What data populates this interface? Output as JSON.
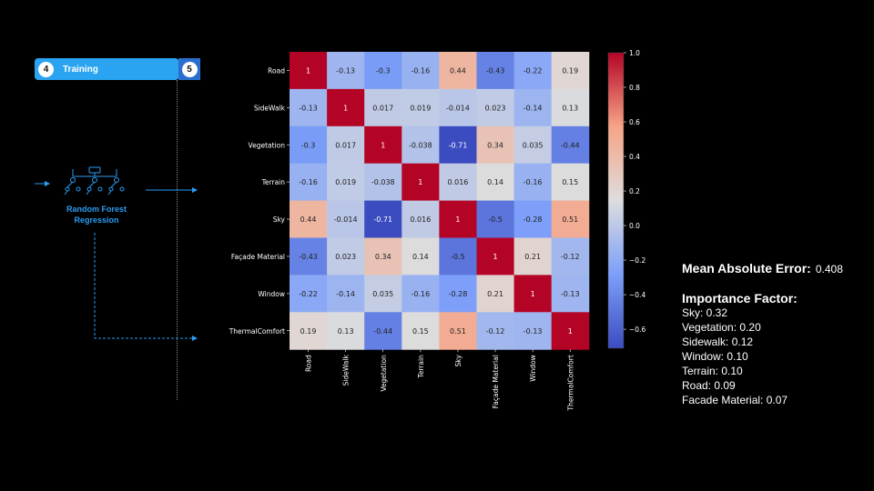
{
  "pipeline": {
    "step_current_number": "4",
    "step_current_label": "Training",
    "step_next_number": "5",
    "model_label_line1": "Random Forest",
    "model_label_line2": "Regression",
    "icon": "decision-tree-icon"
  },
  "chart_data": {
    "type": "heatmap",
    "title": "",
    "xlabel": "",
    "ylabel": "",
    "categories": [
      "Road",
      "SideWalk",
      "Vegetation",
      "Terrain",
      "Sky",
      "Façade Material",
      "Window",
      "ThermalComfort"
    ],
    "matrix": [
      [
        1,
        -0.13,
        -0.3,
        -0.16,
        0.44,
        -0.43,
        -0.22,
        0.19
      ],
      [
        -0.13,
        1,
        0.017,
        0.019,
        -0.014,
        0.023,
        -0.14,
        0.13
      ],
      [
        -0.3,
        0.017,
        1,
        -0.038,
        -0.71,
        0.34,
        0.035,
        -0.44
      ],
      [
        -0.16,
        0.019,
        -0.038,
        1,
        0.016,
        0.14,
        -0.16,
        0.15
      ],
      [
        0.44,
        -0.014,
        -0.71,
        0.016,
        1,
        -0.5,
        -0.28,
        0.51
      ],
      [
        -0.43,
        0.023,
        0.34,
        0.14,
        -0.5,
        1,
        0.21,
        -0.12
      ],
      [
        -0.22,
        -0.14,
        0.035,
        -0.16,
        -0.28,
        0.21,
        1,
        -0.13
      ],
      [
        0.19,
        0.13,
        -0.44,
        0.15,
        0.51,
        -0.12,
        -0.13,
        1
      ]
    ],
    "colormap": "coolwarm",
    "color_range": [
      -0.71,
      1.0
    ],
    "colorbar_ticks": [
      1.0,
      0.8,
      0.6,
      0.4,
      0.2,
      0.0,
      -0.2,
      -0.4,
      -0.6
    ],
    "colorbar_tick_labels": [
      "1.0",
      "0.8",
      "0.6",
      "0.4",
      "0.2",
      "0.0",
      "−0.2",
      "−0.4",
      "−0.6"
    ],
    "legend": "colorbar-right"
  },
  "stats": {
    "mae_label": "Mean Absolute Error:",
    "mae_value": "0.408",
    "importance_title": "Importance Factor:",
    "importance": [
      {
        "name": "Sky:",
        "value": "0.32"
      },
      {
        "name": "Vegetation:",
        "value": "0.20"
      },
      {
        "name": "Sidewalk:",
        "value": "0.12"
      },
      {
        "name": "Window:",
        "value": "0.10"
      },
      {
        "name": "Terrain:",
        "value": "0.10"
      },
      {
        "name": "Road:",
        "value": "0.09"
      },
      {
        "name": "Facade Material:",
        "value": "0.07"
      }
    ]
  }
}
